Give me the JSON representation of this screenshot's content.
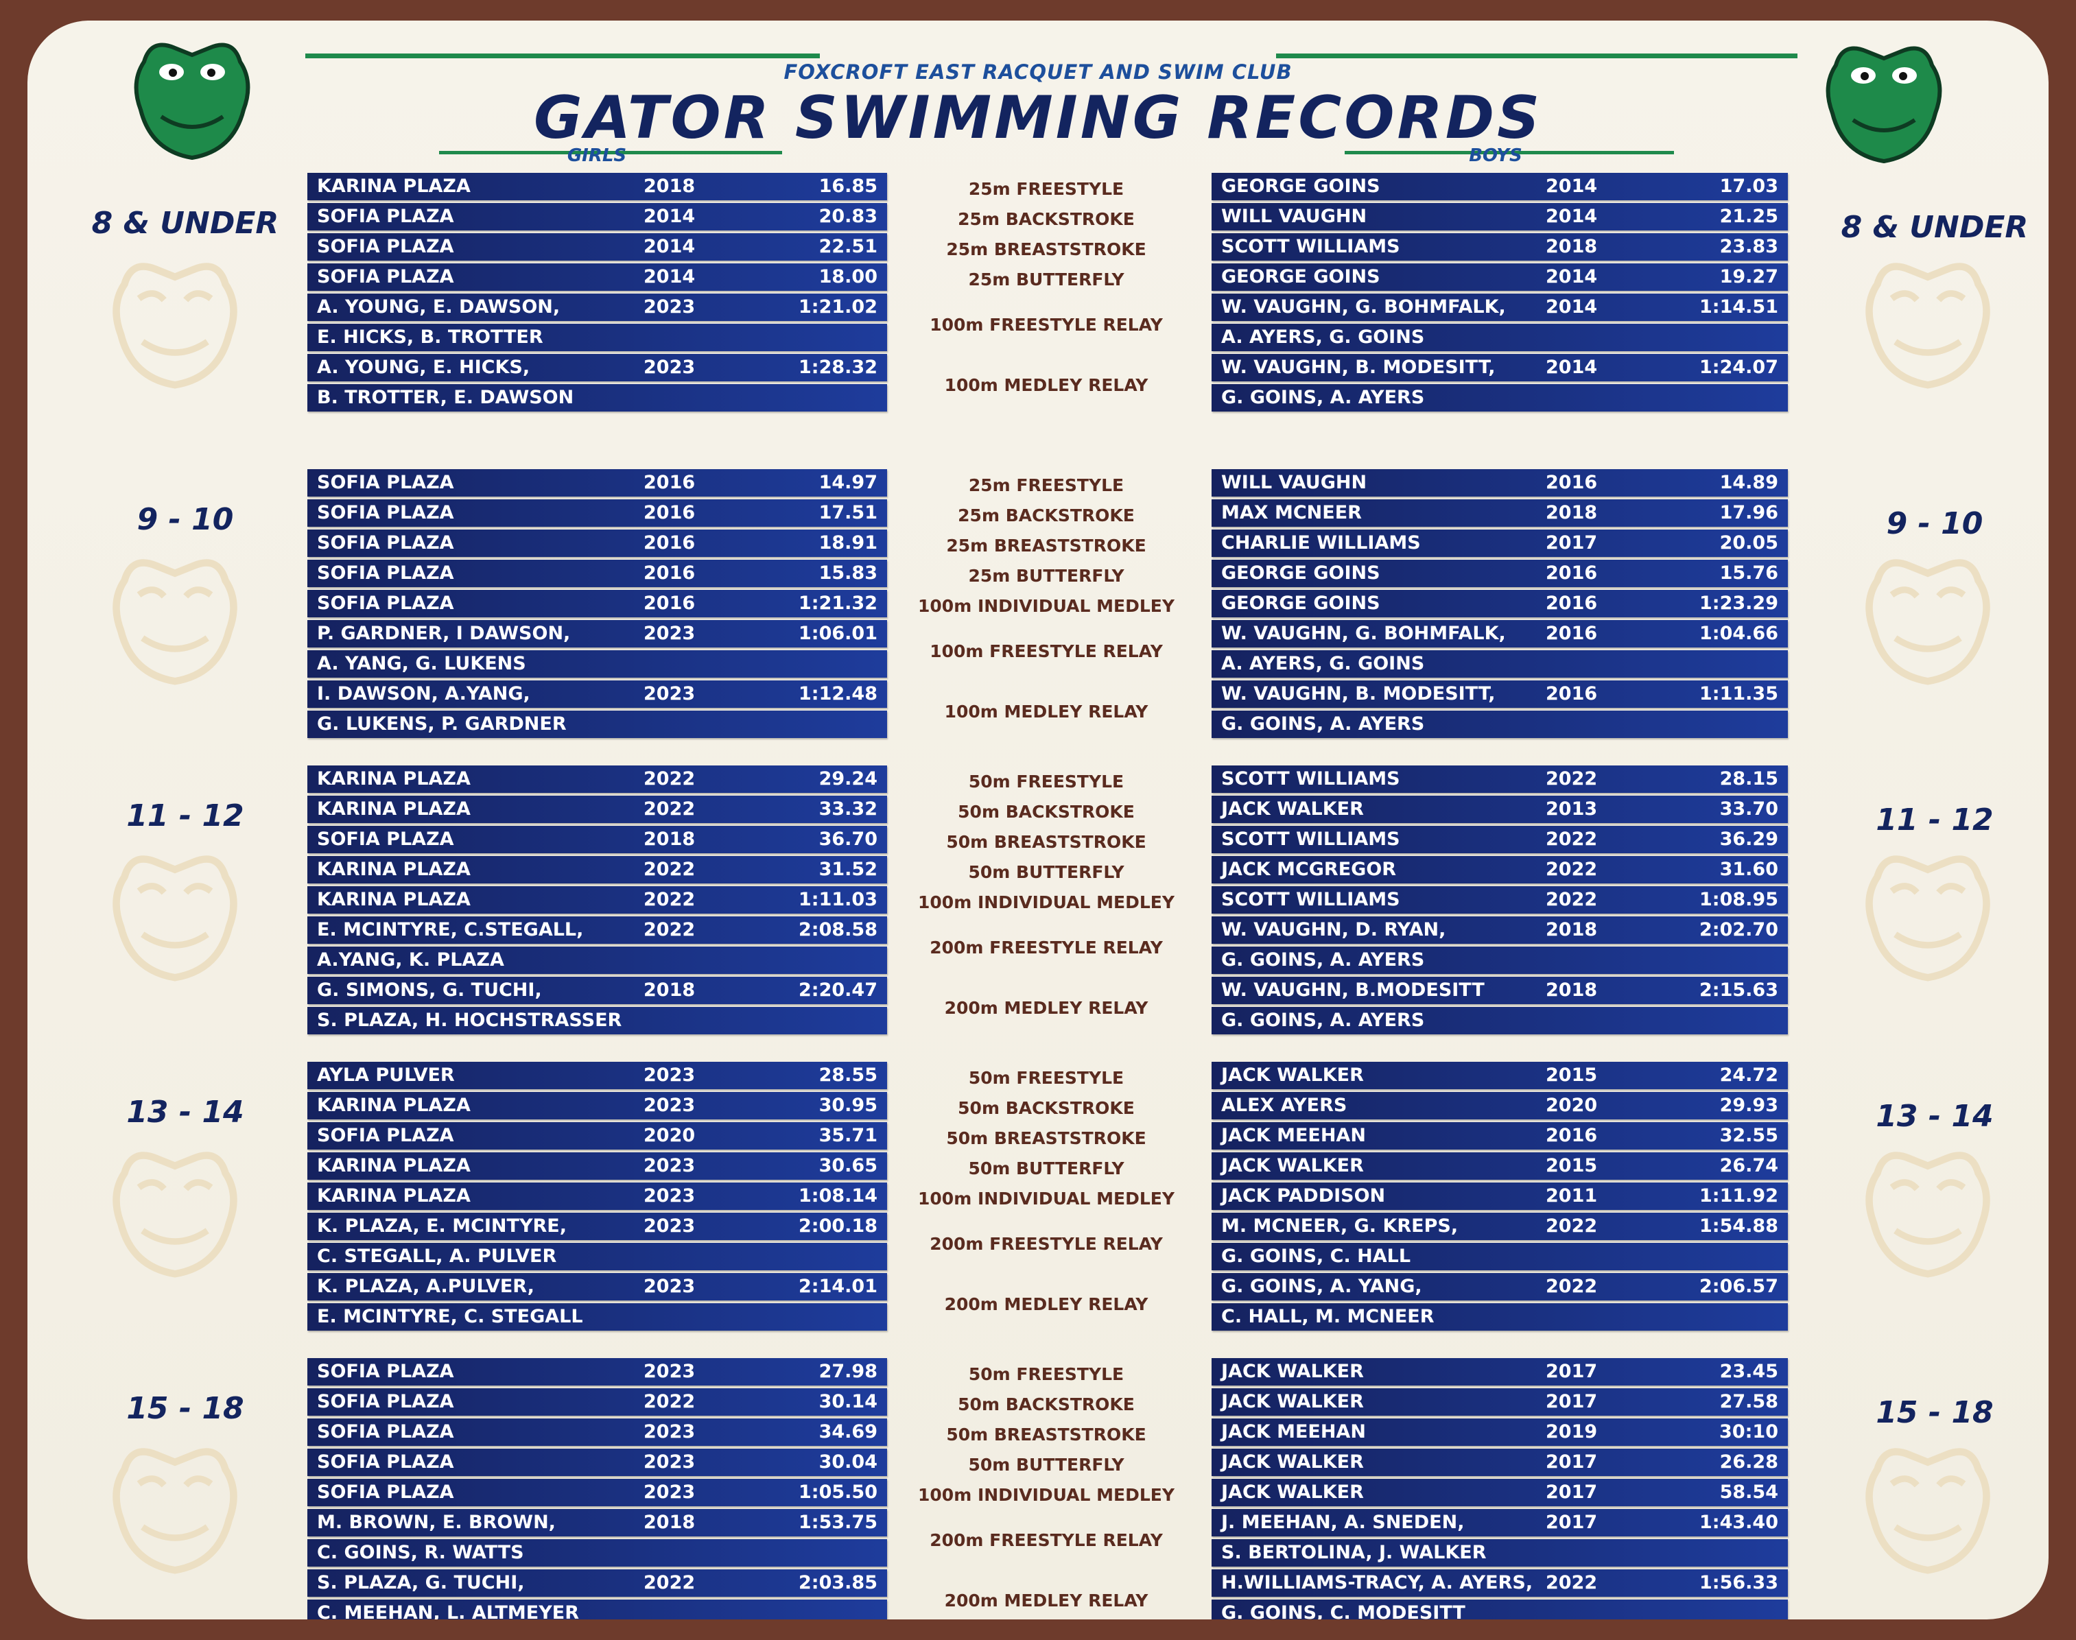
{
  "header": {
    "club": "FOXCROFT EAST RACQUET AND SWIM CLUB",
    "title": "GATOR SWIMMING RECORDS",
    "girls": "GIRLS",
    "boys": "BOYS"
  },
  "sections": [
    {
      "age": "8 & UNDER",
      "events": [
        {
          "event": "25m FREESTYLE",
          "girls": {
            "names": [
              "KARINA PLAZA"
            ],
            "year": "2018",
            "time": "16.85"
          },
          "boys": {
            "names": [
              "GEORGE GOINS"
            ],
            "year": "2014",
            "time": "17.03"
          }
        },
        {
          "event": "25m BACKSTROKE",
          "girls": {
            "names": [
              "SOFIA PLAZA"
            ],
            "year": "2014",
            "time": "20.83"
          },
          "boys": {
            "names": [
              "WILL VAUGHN"
            ],
            "year": "2014",
            "time": "21.25"
          }
        },
        {
          "event": "25m BREASTSTROKE",
          "girls": {
            "names": [
              "SOFIA PLAZA"
            ],
            "year": "2014",
            "time": "22.51"
          },
          "boys": {
            "names": [
              "SCOTT WILLIAMS"
            ],
            "year": "2018",
            "time": "23.83"
          }
        },
        {
          "event": "25m BUTTERFLY",
          "girls": {
            "names": [
              "SOFIA PLAZA"
            ],
            "year": "2014",
            "time": "18.00"
          },
          "boys": {
            "names": [
              "GEORGE GOINS"
            ],
            "year": "2014",
            "time": "19.27"
          }
        },
        {
          "event": "100m FREESTYLE RELAY",
          "girls": {
            "names": [
              "A. YOUNG, E. DAWSON,",
              "E. HICKS, B. TROTTER"
            ],
            "year": "2023",
            "time": "1:21.02"
          },
          "boys": {
            "names": [
              "W. VAUGHN, G. BOHMFALK,",
              "A. AYERS, G. GOINS"
            ],
            "year": "2014",
            "time": "1:14.51"
          }
        },
        {
          "event": "100m MEDLEY RELAY",
          "girls": {
            "names": [
              "A. YOUNG, E. HICKS,",
              "B. TROTTER, E. DAWSON"
            ],
            "year": "2023",
            "time": "1:28.32"
          },
          "boys": {
            "names": [
              "W. VAUGHN, B. MODESITT,",
              "G. GOINS, A. AYERS"
            ],
            "year": "2014",
            "time": "1:24.07"
          }
        }
      ]
    },
    {
      "age": "9 - 10",
      "events": [
        {
          "event": "25m FREESTYLE",
          "girls": {
            "names": [
              "SOFIA PLAZA"
            ],
            "year": "2016",
            "time": "14.97"
          },
          "boys": {
            "names": [
              "WILL VAUGHN"
            ],
            "year": "2016",
            "time": "14.89"
          }
        },
        {
          "event": "25m BACKSTROKE",
          "girls": {
            "names": [
              "SOFIA PLAZA"
            ],
            "year": "2016",
            "time": "17.51"
          },
          "boys": {
            "names": [
              "MAX MCNEER"
            ],
            "year": "2018",
            "time": "17.96"
          }
        },
        {
          "event": "25m BREASTSTROKE",
          "girls": {
            "names": [
              "SOFIA PLAZA"
            ],
            "year": "2016",
            "time": "18.91"
          },
          "boys": {
            "names": [
              "CHARLIE WILLIAMS"
            ],
            "year": "2017",
            "time": "20.05"
          }
        },
        {
          "event": "25m BUTTERFLY",
          "girls": {
            "names": [
              "SOFIA PLAZA"
            ],
            "year": "2016",
            "time": "15.83"
          },
          "boys": {
            "names": [
              "GEORGE GOINS"
            ],
            "year": "2016",
            "time": "15.76"
          }
        },
        {
          "event": "100m INDIVIDUAL MEDLEY",
          "girls": {
            "names": [
              "SOFIA PLAZA"
            ],
            "year": "2016",
            "time": "1:21.32"
          },
          "boys": {
            "names": [
              "GEORGE GOINS"
            ],
            "year": "2016",
            "time": "1:23.29"
          }
        },
        {
          "event": "100m FREESTYLE RELAY",
          "girls": {
            "names": [
              "P. GARDNER, I DAWSON,",
              "A. YANG, G. LUKENS"
            ],
            "year": "2023",
            "time": "1:06.01"
          },
          "boys": {
            "names": [
              "W. VAUGHN, G. BOHMFALK,",
              "A. AYERS, G. GOINS"
            ],
            "year": "2016",
            "time": "1:04.66"
          }
        },
        {
          "event": "100m MEDLEY RELAY",
          "girls": {
            "names": [
              "I. DAWSON, A.YANG,",
              "G. LUKENS, P. GARDNER"
            ],
            "year": "2023",
            "time": "1:12.48"
          },
          "boys": {
            "names": [
              "W. VAUGHN, B. MODESITT,",
              "G. GOINS, A. AYERS"
            ],
            "year": "2016",
            "time": "1:11.35"
          }
        }
      ]
    },
    {
      "age": "11 - 12",
      "events": [
        {
          "event": "50m FREESTYLE",
          "girls": {
            "names": [
              "KARINA PLAZA"
            ],
            "year": "2022",
            "time": "29.24"
          },
          "boys": {
            "names": [
              "SCOTT WILLIAMS"
            ],
            "year": "2022",
            "time": "28.15"
          }
        },
        {
          "event": "50m BACKSTROKE",
          "girls": {
            "names": [
              "KARINA PLAZA"
            ],
            "year": "2022",
            "time": "33.32"
          },
          "boys": {
            "names": [
              "JACK WALKER"
            ],
            "year": "2013",
            "time": "33.70"
          }
        },
        {
          "event": "50m BREASTSTROKE",
          "girls": {
            "names": [
              "SOFIA PLAZA"
            ],
            "year": "2018",
            "time": "36.70"
          },
          "boys": {
            "names": [
              "SCOTT WILLIAMS"
            ],
            "year": "2022",
            "time": "36.29"
          }
        },
        {
          "event": "50m BUTTERFLY",
          "girls": {
            "names": [
              "KARINA PLAZA"
            ],
            "year": "2022",
            "time": "31.52"
          },
          "boys": {
            "names": [
              "JACK MCGREGOR"
            ],
            "year": "2022",
            "time": "31.60"
          }
        },
        {
          "event": "100m INDIVIDUAL MEDLEY",
          "girls": {
            "names": [
              "KARINA PLAZA"
            ],
            "year": "2022",
            "time": "1:11.03"
          },
          "boys": {
            "names": [
              "SCOTT WILLIAMS"
            ],
            "year": "2022",
            "time": "1:08.95"
          }
        },
        {
          "event": "200m FREESTYLE RELAY",
          "girls": {
            "names": [
              "E. MCINTYRE, C.STEGALL,",
              "A.YANG, K. PLAZA"
            ],
            "year": "2022",
            "time": "2:08.58"
          },
          "boys": {
            "names": [
              "W. VAUGHN, D. RYAN,",
              "G. GOINS, A. AYERS"
            ],
            "year": "2018",
            "time": "2:02.70"
          }
        },
        {
          "event": "200m MEDLEY RELAY",
          "girls": {
            "names": [
              "G. SIMONS, G. TUCHI,",
              "S. PLAZA, H. HOCHSTRASSER"
            ],
            "year": "2018",
            "time": "2:20.47"
          },
          "boys": {
            "names": [
              "W. VAUGHN, B.MODESITT",
              "G. GOINS, A. AYERS"
            ],
            "year": "2018",
            "time": "2:15.63"
          }
        }
      ]
    },
    {
      "age": "13 - 14",
      "events": [
        {
          "event": "50m FREESTYLE",
          "girls": {
            "names": [
              "AYLA PULVER"
            ],
            "year": "2023",
            "time": "28.55"
          },
          "boys": {
            "names": [
              "JACK WALKER"
            ],
            "year": "2015",
            "time": "24.72"
          }
        },
        {
          "event": "50m BACKSTROKE",
          "girls": {
            "names": [
              "KARINA PLAZA"
            ],
            "year": "2023",
            "time": "30.95"
          },
          "boys": {
            "names": [
              "ALEX AYERS"
            ],
            "year": "2020",
            "time": "29.93"
          }
        },
        {
          "event": "50m BREASTSTROKE",
          "girls": {
            "names": [
              "SOFIA PLAZA"
            ],
            "year": "2020",
            "time": "35.71"
          },
          "boys": {
            "names": [
              "JACK MEEHAN"
            ],
            "year": "2016",
            "time": "32.55"
          }
        },
        {
          "event": "50m BUTTERFLY",
          "girls": {
            "names": [
              "KARINA PLAZA"
            ],
            "year": "2023",
            "time": "30.65"
          },
          "boys": {
            "names": [
              "JACK WALKER"
            ],
            "year": "2015",
            "time": "26.74"
          }
        },
        {
          "event": "100m INDIVIDUAL MEDLEY",
          "girls": {
            "names": [
              "KARINA PLAZA"
            ],
            "year": "2023",
            "time": "1:08.14"
          },
          "boys": {
            "names": [
              "JACK PADDISON"
            ],
            "year": "2011",
            "time": "1:11.92"
          }
        },
        {
          "event": "200m FREESTYLE RELAY",
          "girls": {
            "names": [
              "K. PLAZA, E. MCINTYRE,",
              "C. STEGALL, A. PULVER"
            ],
            "year": "2023",
            "time": "2:00.18"
          },
          "boys": {
            "names": [
              "M. MCNEER, G. KREPS,",
              "G. GOINS, C. HALL"
            ],
            "year": "2022",
            "time": "1:54.88"
          }
        },
        {
          "event": "200m MEDLEY RELAY",
          "girls": {
            "names": [
              "K. PLAZA, A.PULVER,",
              "E. MCINTYRE, C. STEGALL"
            ],
            "year": "2023",
            "time": "2:14.01"
          },
          "boys": {
            "names": [
              "G. GOINS, A. YANG,",
              "C. HALL, M. MCNEER"
            ],
            "year": "2022",
            "time": "2:06.57"
          }
        }
      ]
    },
    {
      "age": "15 - 18",
      "events": [
        {
          "event": "50m FREESTYLE",
          "girls": {
            "names": [
              "SOFIA PLAZA"
            ],
            "year": "2023",
            "time": "27.98"
          },
          "boys": {
            "names": [
              "JACK WALKER"
            ],
            "year": "2017",
            "time": "23.45"
          }
        },
        {
          "event": "50m BACKSTROKE",
          "girls": {
            "names": [
              "SOFIA PLAZA"
            ],
            "year": "2022",
            "time": "30.14"
          },
          "boys": {
            "names": [
              "JACK WALKER"
            ],
            "year": "2017",
            "time": "27.58"
          }
        },
        {
          "event": "50m BREASTSTROKE",
          "girls": {
            "names": [
              "SOFIA PLAZA"
            ],
            "year": "2023",
            "time": "34.69"
          },
          "boys": {
            "names": [
              "JACK MEEHAN"
            ],
            "year": "2019",
            "time": "30:10"
          }
        },
        {
          "event": "50m BUTTERFLY",
          "girls": {
            "names": [
              "SOFIA PLAZA"
            ],
            "year": "2023",
            "time": "30.04"
          },
          "boys": {
            "names": [
              "JACK WALKER"
            ],
            "year": "2017",
            "time": "26.28"
          }
        },
        {
          "event": "100m INDIVIDUAL MEDLEY",
          "girls": {
            "names": [
              "SOFIA PLAZA"
            ],
            "year": "2023",
            "time": "1:05.50"
          },
          "boys": {
            "names": [
              "JACK WALKER"
            ],
            "year": "2017",
            "time": "58.54"
          }
        },
        {
          "event": "200m FREESTYLE RELAY",
          "girls": {
            "names": [
              "M. BROWN, E. BROWN,",
              "C. GOINS, R. WATTS"
            ],
            "year": "2018",
            "time": "1:53.75"
          },
          "boys": {
            "names": [
              "J. MEEHAN, A. SNEDEN,",
              "S. BERTOLINA, J. WALKER"
            ],
            "year": "2017",
            "time": "1:43.40"
          }
        },
        {
          "event": "200m MEDLEY RELAY",
          "girls": {
            "names": [
              "S. PLAZA, G. TUCHI,",
              "C. MEEHAN, L. ALTMEYER"
            ],
            "year": "2022",
            "time": "2:03.85"
          },
          "boys": {
            "names": [
              "H.WILLIAMS-TRACY, A. AYERS,",
              "G. GOINS, C. MODESITT"
            ],
            "year": "2022",
            "time": "1:56.33"
          }
        }
      ]
    }
  ]
}
